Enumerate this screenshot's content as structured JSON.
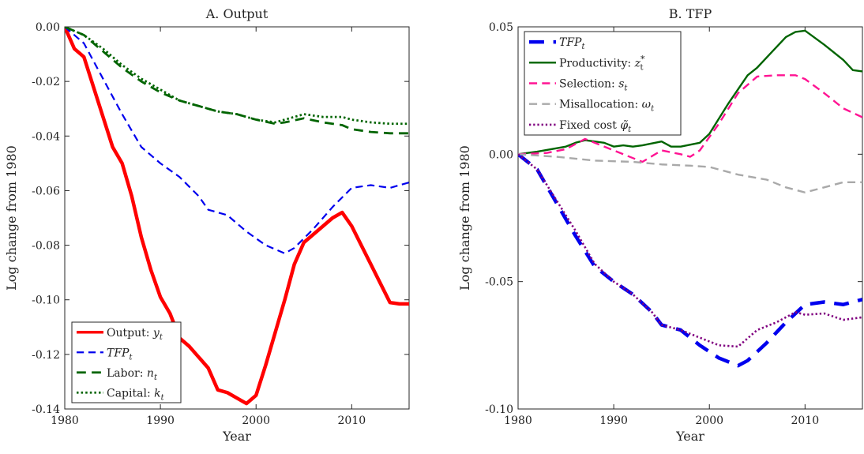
{
  "chart_data": [
    {
      "type": "line",
      "title": "A. Output",
      "xlabel": "Year",
      "ylabel": "Log change from 1980",
      "xlim": [
        1980,
        2016
      ],
      "ylim": [
        -0.14,
        0.0
      ],
      "xticks": [
        1980,
        1990,
        2000,
        2010
      ],
      "xtick_labels": [
        "1980",
        "1990",
        "2000",
        "2010"
      ],
      "yticks": [
        0.0,
        -0.02,
        -0.04,
        -0.06,
        -0.08,
        -0.1,
        -0.12,
        -0.14
      ],
      "ytick_labels": [
        "0.00",
        "-0.02",
        "-0.04",
        "-0.06",
        "-0.08",
        "-0.10",
        "-0.12",
        "-0.14"
      ],
      "grid": false,
      "legend_position": "bottom-left",
      "series": [
        {
          "name": "Output: y_t",
          "legend_main": "Output: ",
          "legend_sym": "y",
          "legend_sub": "t",
          "color": "#ff0000",
          "style": "solid",
          "width": 4.5,
          "x": [
            1980,
            1981,
            1982,
            1983,
            1984,
            1985,
            1986,
            1987,
            1988,
            1989,
            1990,
            1991,
            1992,
            1993,
            1994,
            1995,
            1996,
            1997,
            1998,
            1999,
            2000,
            2001,
            2002,
            2003,
            2004,
            2005,
            2006,
            2007,
            2008,
            2009,
            2010,
            2011,
            2012,
            2013,
            2014,
            2015,
            2016
          ],
          "y": [
            0.0,
            -0.008,
            -0.011,
            -0.022,
            -0.033,
            -0.044,
            -0.05,
            -0.062,
            -0.077,
            -0.089,
            -0.099,
            -0.105,
            -0.114,
            -0.117,
            -0.121,
            -0.125,
            -0.133,
            -0.134,
            -0.136,
            -0.138,
            -0.135,
            -0.124,
            -0.112,
            -0.1,
            -0.087,
            -0.079,
            -0.076,
            -0.073,
            -0.07,
            -0.068,
            -0.073,
            -0.08,
            -0.087,
            -0.094,
            -0.101,
            -0.1015,
            -0.1015
          ]
        },
        {
          "name": "TFP_t",
          "legend_main": "",
          "legend_sym": "TFP",
          "legend_sub": "t",
          "color": "#0000ee",
          "style": "dashed",
          "width": 2.2,
          "x": [
            1980,
            1982,
            1984,
            1986,
            1988,
            1990,
            1992,
            1994,
            1995,
            1997,
            1999,
            2001,
            2003,
            2004,
            2006,
            2008,
            2010,
            2012,
            2014,
            2016
          ],
          "y": [
            0.0,
            -0.006,
            -0.019,
            -0.032,
            -0.044,
            -0.05,
            -0.055,
            -0.062,
            -0.067,
            -0.069,
            -0.075,
            -0.08,
            -0.083,
            -0.081,
            -0.074,
            -0.066,
            -0.059,
            -0.058,
            -0.059,
            -0.057
          ]
        },
        {
          "name": "Labor: n_t",
          "legend_main": "Labor: ",
          "legend_sym": "n",
          "legend_sub": "t",
          "color": "#006400",
          "style": "dashed",
          "width": 2.8,
          "x": [
            1980,
            1982,
            1984,
            1986,
            1988,
            1990,
            1992,
            1994,
            1996,
            1998,
            2000,
            2002,
            2003,
            2005,
            2007,
            2009,
            2010,
            2012,
            2014,
            2016
          ],
          "y": [
            0.0,
            -0.003,
            -0.009,
            -0.015,
            -0.02,
            -0.024,
            -0.027,
            -0.029,
            -0.031,
            -0.032,
            -0.034,
            -0.0355,
            -0.035,
            -0.0335,
            -0.035,
            -0.036,
            -0.0375,
            -0.0385,
            -0.039,
            -0.039
          ]
        },
        {
          "name": "Capital: k_t",
          "legend_main": "Capital: ",
          "legend_sym": "k",
          "legend_sub": "t",
          "color": "#006400",
          "style": "dotted",
          "width": 2.8,
          "x": [
            1980,
            1982,
            1984,
            1986,
            1988,
            1990,
            1992,
            1994,
            1996,
            1998,
            2000,
            2002,
            2004,
            2005,
            2007,
            2009,
            2010,
            2012,
            2014,
            2016
          ],
          "y": [
            0.0,
            -0.003,
            -0.008,
            -0.014,
            -0.019,
            -0.023,
            -0.027,
            -0.029,
            -0.031,
            -0.032,
            -0.034,
            -0.035,
            -0.033,
            -0.032,
            -0.033,
            -0.033,
            -0.034,
            -0.035,
            -0.0355,
            -0.0355
          ]
        }
      ]
    },
    {
      "type": "line",
      "title": "B. TFP",
      "xlabel": "Year",
      "ylabel": "Log change from 1980",
      "xlim": [
        1980,
        2016
      ],
      "ylim": [
        -0.1,
        0.05
      ],
      "xticks": [
        1980,
        1990,
        2000,
        2010
      ],
      "xtick_labels": [
        "1980",
        "1990",
        "2000",
        "2010"
      ],
      "yticks": [
        0.05,
        0.0,
        -0.05,
        -0.1
      ],
      "ytick_labels": [
        "0.05",
        "0.00",
        "-0.05",
        "-0.10"
      ],
      "grid": false,
      "legend_position": "top-left",
      "series": [
        {
          "name": "TFP_t",
          "legend_main": "",
          "legend_sym": "TFP",
          "legend_sub": "t",
          "color": "#0000ee",
          "style": "dashed",
          "width": 4.5,
          "x": [
            1980,
            1982,
            1984,
            1986,
            1988,
            1990,
            1992,
            1994,
            1995,
            1997,
            1999,
            2001,
            2003,
            2004,
            2006,
            2008,
            2010,
            2012,
            2014,
            2016
          ],
          "y": [
            0.0,
            -0.006,
            -0.019,
            -0.032,
            -0.044,
            -0.05,
            -0.055,
            -0.062,
            -0.067,
            -0.069,
            -0.075,
            -0.08,
            -0.083,
            -0.081,
            -0.074,
            -0.066,
            -0.059,
            -0.058,
            -0.059,
            -0.057
          ]
        },
        {
          "name": "Productivity: z*_t",
          "legend_main": "Productivity: ",
          "legend_sym": "z",
          "legend_sub": "t",
          "legend_sup": "*",
          "color": "#006400",
          "style": "solid",
          "width": 2.4,
          "x": [
            1980,
            1982,
            1985,
            1986,
            1987,
            1988,
            1989,
            1990,
            1991,
            1992,
            1993,
            1995,
            1996,
            1997,
            1999,
            2000,
            2002,
            2004,
            2005,
            2006,
            2008,
            2009,
            2010,
            2012,
            2014,
            2015,
            2016
          ],
          "y": [
            0.0,
            0.001,
            0.003,
            0.0045,
            0.0055,
            0.005,
            0.0045,
            0.003,
            0.0035,
            0.003,
            0.0035,
            0.005,
            0.003,
            0.003,
            0.0045,
            0.008,
            0.02,
            0.031,
            0.034,
            0.038,
            0.046,
            0.048,
            0.0485,
            0.043,
            0.037,
            0.033,
            0.0325
          ]
        },
        {
          "name": "Selection: s_t",
          "legend_main": "Selection: ",
          "legend_sym": "s",
          "legend_sub": "t",
          "color": "#ff1493",
          "style": "dashed",
          "width": 2.4,
          "x": [
            1980,
            1983,
            1985,
            1987,
            1989,
            1991,
            1993,
            1995,
            1997,
            1998,
            1999,
            2001,
            2003,
            2005,
            2007,
            2009,
            2010,
            2012,
            2014,
            2016
          ],
          "y": [
            0.0,
            0.0005,
            0.002,
            0.006,
            0.003,
            0.0,
            -0.003,
            0.0015,
            0.0,
            -0.001,
            0.0015,
            0.012,
            0.024,
            0.0305,
            0.031,
            0.031,
            0.0295,
            0.024,
            0.018,
            0.0145
          ]
        },
        {
          "name": "Misallocation: ω_t",
          "legend_main": "Misallocation: ",
          "legend_sym": "ω",
          "legend_sub": "t",
          "color": "#a9a9a9",
          "style": "dashed",
          "width": 2.4,
          "x": [
            1980,
            1984,
            1988,
            1992,
            1995,
            1998,
            2000,
            2003,
            2006,
            2008,
            2010,
            2012,
            2014,
            2016
          ],
          "y": [
            0.0,
            -0.001,
            -0.0025,
            -0.003,
            -0.004,
            -0.0045,
            -0.005,
            -0.008,
            -0.01,
            -0.013,
            -0.015,
            -0.013,
            -0.011,
            -0.011
          ]
        },
        {
          "name": "Fixed cost φ̃_t",
          "legend_main": "Fixed cost ",
          "legend_sym": "φ̃",
          "legend_sub": "t",
          "color": "#800080",
          "style": "dotted",
          "width": 2.6,
          "x": [
            1980,
            1982,
            1984,
            1986,
            1988,
            1990,
            1992,
            1994,
            1995,
            1997,
            1999,
            2001,
            2003,
            2005,
            2007,
            2009,
            2010,
            2012,
            2014,
            2016
          ],
          "y": [
            0.0,
            -0.006,
            -0.018,
            -0.03,
            -0.043,
            -0.05,
            -0.055,
            -0.062,
            -0.067,
            -0.069,
            -0.072,
            -0.075,
            -0.0755,
            -0.069,
            -0.066,
            -0.062,
            -0.063,
            -0.0625,
            -0.065,
            -0.064
          ]
        }
      ]
    }
  ]
}
